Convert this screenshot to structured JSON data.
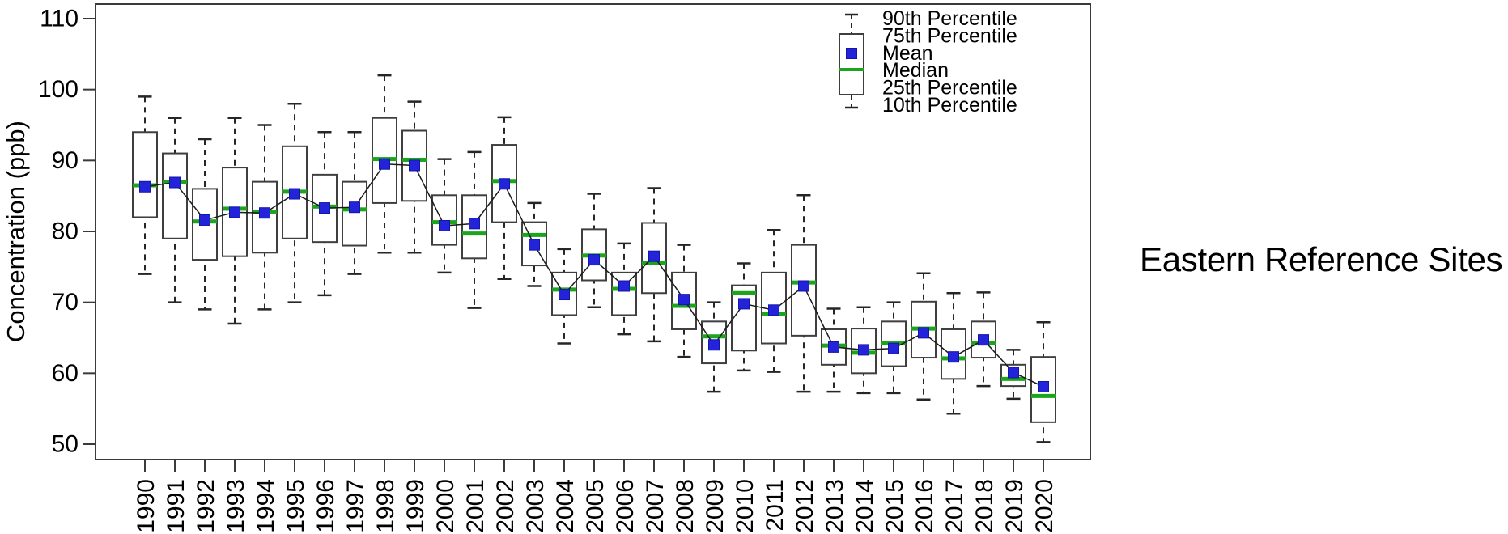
{
  "annotation": {
    "text": "Eastern Reference Sites"
  },
  "y_axis": {
    "title": "Concentration (ppb)",
    "ticks": [
      110,
      100,
      90,
      80,
      70,
      60,
      50
    ]
  },
  "x_axis": {
    "ticks": [
      "1990",
      "1991",
      "1992",
      "1993",
      "1994",
      "1995",
      "1996",
      "1997",
      "1998",
      "1999",
      "2000",
      "2001",
      "2002",
      "2003",
      "2004",
      "2005",
      "2006",
      "2007",
      "2008",
      "2009",
      "2010",
      "2011",
      "2012",
      "2013",
      "2014",
      "2015",
      "2016",
      "2017",
      "2018",
      "2019",
      "2020"
    ]
  },
  "legend": {
    "entries": [
      "90th Percentile",
      "75th Percentile",
      "Mean",
      "Median",
      "25th Percentile",
      "10th Percentile"
    ]
  },
  "colors": {
    "median": "#1ca51c",
    "mean": "#2323d9",
    "mean_edge": "#1414a8",
    "box_stroke": "#3f3f3f",
    "whisker": "#262626",
    "connector": "#1a1a1a",
    "axis": "#3a3a3a",
    "text": "#000000"
  },
  "chart_data": {
    "type": "box",
    "title": "",
    "xlabel": "",
    "ylabel": "Concentration (ppb)",
    "ylim": [
      50,
      110
    ],
    "grid": false,
    "legend_position": "top-right",
    "annotation": "Eastern Reference Sites",
    "categories": [
      "1990",
      "1991",
      "1992",
      "1993",
      "1994",
      "1995",
      "1996",
      "1997",
      "1998",
      "1999",
      "2000",
      "2001",
      "2002",
      "2003",
      "2004",
      "2005",
      "2006",
      "2007",
      "2008",
      "2009",
      "2010",
      "2011",
      "2012",
      "2013",
      "2014",
      "2015",
      "2016",
      "2017",
      "2018",
      "2019",
      "2020"
    ],
    "series": [
      {
        "name": "90th Percentile",
        "values": [
          99,
          96,
          93,
          96,
          95,
          98,
          94,
          94,
          102,
          98.3,
          90.2,
          91.2,
          96.1,
          84.0,
          77.5,
          85.3,
          78.3,
          86.1,
          78.1,
          70.0,
          75.5,
          80.2,
          85.1,
          69.1,
          69.3,
          70.0,
          74.1,
          71.3,
          71.4,
          63.3,
          67.2
        ]
      },
      {
        "name": "75th Percentile",
        "values": [
          94,
          91,
          86,
          89,
          87,
          92,
          88,
          87,
          96,
          94.2,
          85.1,
          85.1,
          92.2,
          81.3,
          74.2,
          80.3,
          74.2,
          81.2,
          74.2,
          67.3,
          72.4,
          74.2,
          78.1,
          66.2,
          66.3,
          67.3,
          70.1,
          66.2,
          67.3,
          61.2,
          62.3
        ]
      },
      {
        "name": "Mean",
        "values": [
          86.3,
          86.9,
          81.6,
          82.7,
          82.6,
          85.3,
          83.3,
          83.4,
          89.5,
          89.3,
          80.8,
          81.1,
          86.7,
          78.1,
          71.1,
          76.0,
          72.3,
          76.5,
          70.4,
          64.0,
          69.8,
          68.9,
          72.3,
          63.7,
          63.3,
          63.5,
          65.7,
          62.3,
          64.7,
          60.1,
          58.1
        ]
      },
      {
        "name": "Median",
        "values": [
          86.5,
          87.0,
          81.4,
          83.2,
          82.8,
          85.6,
          83.5,
          83.1,
          90.2,
          90.1,
          81.3,
          79.7,
          87.1,
          79.5,
          71.8,
          76.6,
          71.9,
          75.5,
          69.5,
          65.2,
          71.3,
          68.4,
          72.8,
          63.9,
          62.9,
          64.2,
          66.3,
          62.1,
          64.2,
          59.2,
          56.8
        ]
      },
      {
        "name": "25th Percentile",
        "values": [
          82,
          79,
          76,
          76.5,
          77,
          79,
          78.5,
          78,
          84,
          84.3,
          78.1,
          76.2,
          81.3,
          75.2,
          68.2,
          73.1,
          68.2,
          71.3,
          66.2,
          61.4,
          63.2,
          64.2,
          65.3,
          61.2,
          60.0,
          61.0,
          62.2,
          59.2,
          62.2,
          58.2,
          53.1
        ]
      },
      {
        "name": "10th Percentile",
        "values": [
          74,
          70,
          69,
          67,
          69,
          70,
          71,
          74,
          77,
          77,
          74.2,
          69.2,
          73.3,
          72.3,
          64.2,
          69.3,
          65.5,
          64.5,
          62.3,
          57.4,
          60.4,
          60.2,
          57.4,
          57.4,
          57.2,
          57.2,
          56.3,
          54.3,
          58.2,
          56.4,
          50.3
        ]
      }
    ]
  }
}
